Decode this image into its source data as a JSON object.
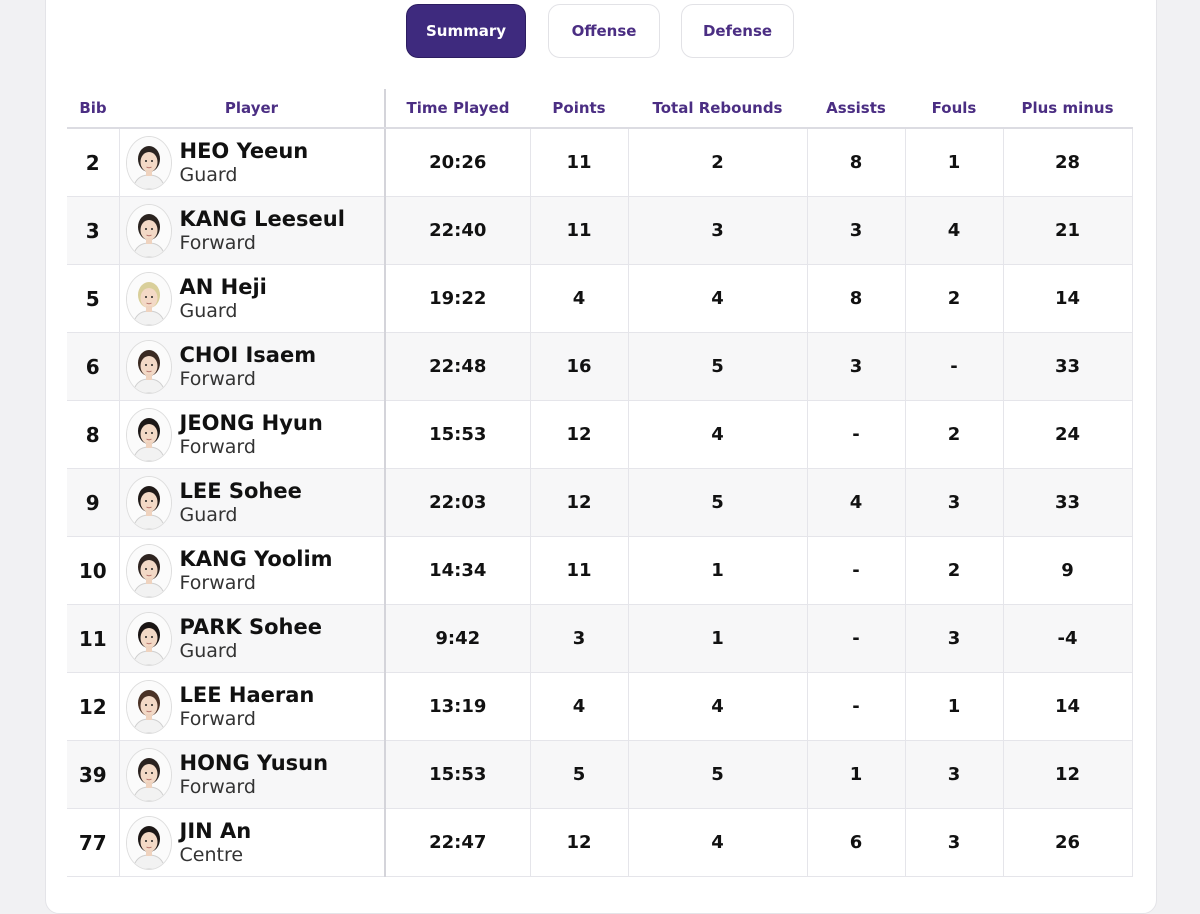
{
  "tabs": [
    {
      "label": "Summary",
      "active": true
    },
    {
      "label": "Offense",
      "active": false
    },
    {
      "label": "Defense",
      "active": false
    }
  ],
  "columns": [
    "Bib",
    "Player",
    "Time Played",
    "Points",
    "Total Rebounds",
    "Assists",
    "Fouls",
    "Plus minus"
  ],
  "players": [
    {
      "bib": "2",
      "name": "HEO Yeeun",
      "position": "Guard",
      "time": "20:26",
      "points": "11",
      "rebounds": "2",
      "assists": "8",
      "fouls": "1",
      "plus_minus": "28",
      "hair": "#2a2320"
    },
    {
      "bib": "3",
      "name": "KANG Leeseul",
      "position": "Forward",
      "time": "22:40",
      "points": "11",
      "rebounds": "3",
      "assists": "3",
      "fouls": "4",
      "plus_minus": "21",
      "hair": "#2b2420"
    },
    {
      "bib": "5",
      "name": "AN Heji",
      "position": "Guard",
      "time": "19:22",
      "points": "4",
      "rebounds": "4",
      "assists": "8",
      "fouls": "2",
      "plus_minus": "14",
      "hair": "#d9cf9a"
    },
    {
      "bib": "6",
      "name": "CHOI Isaem",
      "position": "Forward",
      "time": "22:48",
      "points": "16",
      "rebounds": "5",
      "assists": "3",
      "fouls": "-",
      "plus_minus": "33",
      "hair": "#3a2a22"
    },
    {
      "bib": "8",
      "name": "JEONG Hyun",
      "position": "Forward",
      "time": "15:53",
      "points": "12",
      "rebounds": "4",
      "assists": "-",
      "fouls": "2",
      "plus_minus": "24",
      "hair": "#1c1817"
    },
    {
      "bib": "9",
      "name": "LEE Sohee",
      "position": "Guard",
      "time": "22:03",
      "points": "12",
      "rebounds": "5",
      "assists": "4",
      "fouls": "3",
      "plus_minus": "33",
      "hair": "#201a18"
    },
    {
      "bib": "10",
      "name": "KANG Yoolim",
      "position": "Forward",
      "time": "14:34",
      "points": "11",
      "rebounds": "1",
      "assists": "-",
      "fouls": "2",
      "plus_minus": "9",
      "hair": "#2e2420"
    },
    {
      "bib": "11",
      "name": "PARK Sohee",
      "position": "Guard",
      "time": "9:42",
      "points": "3",
      "rebounds": "1",
      "assists": "-",
      "fouls": "3",
      "plus_minus": "-4",
      "hair": "#1a1514"
    },
    {
      "bib": "12",
      "name": "LEE Haeran",
      "position": "Forward",
      "time": "13:19",
      "points": "4",
      "rebounds": "4",
      "assists": "-",
      "fouls": "1",
      "plus_minus": "14",
      "hair": "#4a3226"
    },
    {
      "bib": "39",
      "name": "HONG Yusun",
      "position": "Forward",
      "time": "15:53",
      "points": "5",
      "rebounds": "5",
      "assists": "1",
      "fouls": "3",
      "plus_minus": "12",
      "hair": "#2a221f"
    },
    {
      "bib": "77",
      "name": "JIN An",
      "position": "Centre",
      "time": "22:47",
      "points": "12",
      "rebounds": "4",
      "assists": "6",
      "fouls": "3",
      "plus_minus": "26",
      "hair": "#1c1716"
    }
  ]
}
